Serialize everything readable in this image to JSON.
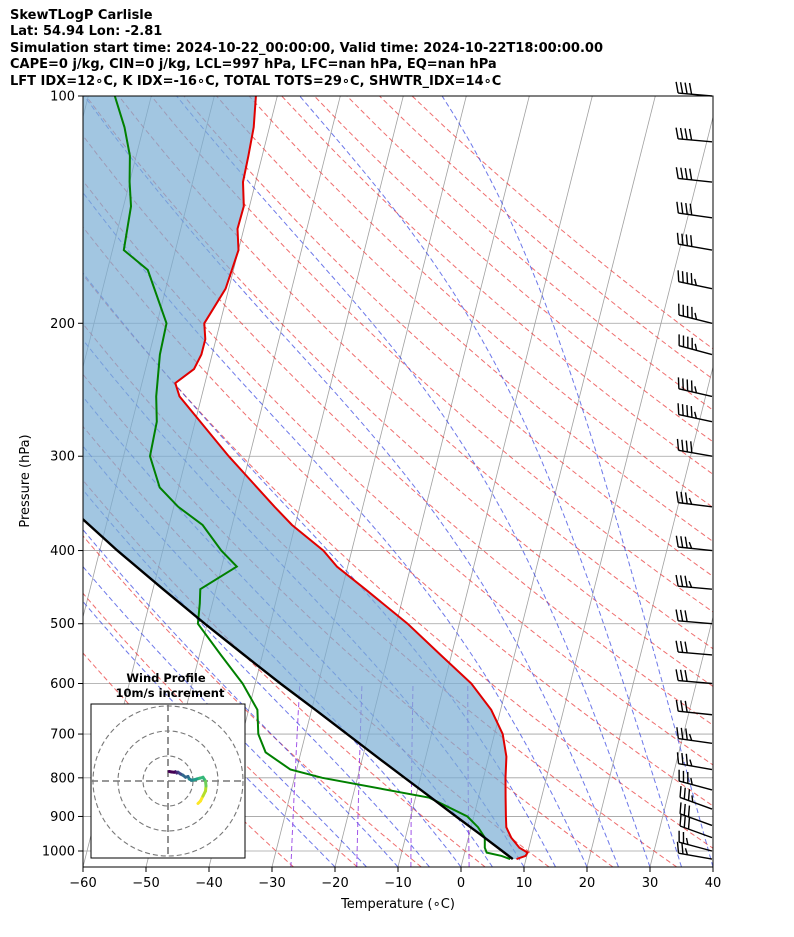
{
  "header": {
    "title": "SkewTLogP Carlisle",
    "location": "Lat: 54.94   Lon: -2.81",
    "times": "Simulation start time: 2024-10-22_00:00:00, Valid time: 2024-10-22T18:00:00.00",
    "params": "CAPE=0 j/kg, CIN=0 j/kg, LCL=997 hPa, LFC=nan hPa, EQ=nan hPa",
    "indices": "LFT IDX=12∘C, K IDX=-16∘C, TOTAL TOTS=29∘C, SHWTR_IDX=14∘C"
  },
  "colors": {
    "temperature": "#e00000",
    "dewpoint": "#008000",
    "parcel": "#000000",
    "shade": "#7aaed4",
    "dry_adiabat": "#e83030",
    "moist_adiabat": "#2f3fe0",
    "mixing_ratio": "#8a2be2",
    "isotherm": "#a0a0a0"
  },
  "chart_data": {
    "type": "line",
    "skew_t": true,
    "xlabel": "Temperature (∘C)",
    "ylabel": "Pressure (hPa)",
    "xlim": [
      -60,
      40
    ],
    "ylim": [
      1050,
      100
    ],
    "y_scale": "log",
    "grid": true,
    "x_ticks": [
      "−60",
      "−50",
      "−40",
      "−30",
      "−20",
      "−10",
      "0",
      "10",
      "20",
      "30",
      "40"
    ],
    "y_ticks": [
      "100",
      "200",
      "300",
      "400",
      "500",
      "600",
      "700",
      "800",
      "900",
      "1000"
    ],
    "x_tick_values": [
      -60,
      -50,
      -40,
      -30,
      -20,
      -10,
      0,
      10,
      20,
      30,
      40
    ],
    "y_tick_values": [
      100,
      200,
      300,
      400,
      500,
      600,
      700,
      800,
      900,
      1000
    ],
    "series": [
      {
        "key": "temperature",
        "pressure": [
          1025,
          1015,
          1005,
          990,
          960,
          930,
          900,
          850,
          800,
          750,
          700,
          650,
          600,
          550,
          500,
          450,
          420,
          400,
          370,
          350,
          300,
          250,
          240,
          230,
          220,
          210,
          200,
          180,
          160,
          150,
          140,
          130,
          120,
          110,
          100
        ],
        "values": [
          8.5,
          9.8,
          10.0,
          8.5,
          6.8,
          5.6,
          5.1,
          4.3,
          3.5,
          2.8,
          1.3,
          -1.5,
          -5.7,
          -11.7,
          -18.2,
          -26.3,
          -31.7,
          -34.5,
          -40.5,
          -44.0,
          -53.3,
          -63.5,
          -64.7,
          -62.3,
          -61.7,
          -61.7,
          -62.5,
          -60.5,
          -60.0,
          -61.0,
          -60.9,
          -62.0,
          -62.2,
          -62.5,
          -63.4
        ]
      },
      {
        "key": "dewpoint",
        "pressure": [
          1025,
          1015,
          1005,
          990,
          960,
          930,
          900,
          850,
          800,
          780,
          740,
          700,
          650,
          600,
          550,
          500,
          470,
          450,
          420,
          400,
          370,
          350,
          330,
          300,
          270,
          250,
          220,
          200,
          170,
          160,
          140,
          130,
          120,
          110,
          100
        ],
        "values": [
          7.5,
          6.0,
          3.5,
          3.0,
          2.6,
          1.1,
          -1.0,
          -7.8,
          -25.6,
          -31.0,
          -35.6,
          -37.5,
          -38.6,
          -42.0,
          -46.6,
          -51.5,
          -52.0,
          -52.5,
          -47.6,
          -50.7,
          -54.7,
          -59.3,
          -63.0,
          -65.8,
          -66.1,
          -67.2,
          -68.3,
          -68.5,
          -73.6,
          -78.2,
          -78.8,
          -80.0,
          -81.0,
          -83.0,
          -85.8
        ]
      },
      {
        "key": "parcel",
        "pressure": [
          1025,
          1000,
          950,
          900,
          850,
          800,
          750,
          700,
          650,
          600,
          550,
          500,
          450,
          400,
          350,
          300,
          250,
          200,
          150,
          120,
          100
        ],
        "values": [
          7.9,
          5.9,
          1.7,
          -2.8,
          -7.5,
          -12.5,
          -17.8,
          -23.4,
          -29.4,
          -36.0,
          -42.9,
          -50.4,
          -58.4,
          -67.2,
          -76.6,
          -87.0,
          -98.5,
          -111.0,
          -126.0,
          -136.0,
          -143.6
        ]
      }
    ],
    "wind_barbs": {
      "pressure": [
        1025,
        1000,
        960,
        925,
        880,
        830,
        780,
        720,
        660,
        600,
        550,
        500,
        450,
        400,
        350,
        300,
        270,
        250,
        220,
        200,
        180,
        160,
        145,
        130,
        115,
        100
      ],
      "speed_ms": [
        12,
        14,
        15,
        16,
        17,
        18,
        18,
        17,
        16,
        15,
        15,
        16,
        17,
        18,
        19,
        21,
        22,
        23,
        24,
        23,
        22,
        21,
        20,
        20,
        20,
        21
      ],
      "direction_deg": [
        280,
        285,
        290,
        290,
        290,
        285,
        280,
        278,
        276,
        275,
        275,
        275,
        275,
        276,
        277,
        280,
        282,
        283,
        285,
        284,
        282,
        280,
        278,
        276,
        275,
        275
      ]
    },
    "hodograph": {
      "title": "Wind Profile",
      "subtitle": "10m/s increment",
      "rings_ms": [
        10,
        20,
        30
      ],
      "u_ms": [
        12,
        13,
        14,
        15,
        15.2,
        15,
        14.5,
        14,
        13,
        11.5,
        10.5,
        9.5,
        8.5,
        8,
        7,
        6,
        5,
        4,
        3.5,
        3,
        2.5,
        1.5,
        0.5
      ],
      "v_ms": [
        -9,
        -8,
        -6,
        -4,
        -2,
        0,
        0.7,
        1.5,
        1.2,
        0.8,
        0.5,
        0.3,
        0.8,
        1.8,
        1.5,
        2.3,
        2.8,
        3.5,
        3.2,
        3.7,
        3.5,
        3.6,
        3.8
      ]
    }
  }
}
